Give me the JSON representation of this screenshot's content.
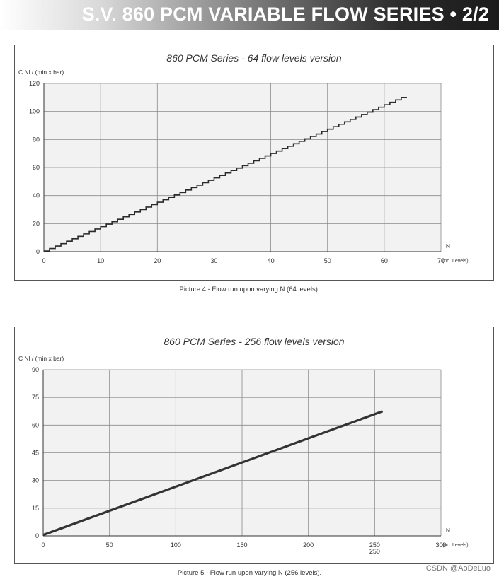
{
  "header": {
    "title": "S.V. 860 PCM VARIABLE FLOW SERIES • 2/2"
  },
  "chart_data": [
    {
      "type": "line",
      "title": "860 PCM  Series  -  64 flow levels version",
      "ylabel": "C Nl / (min x bar)",
      "xlabel": "N",
      "xlabel_unit": "(no. Levels)",
      "xlim": [
        0,
        70
      ],
      "ylim": [
        0,
        120
      ],
      "x_ticks": [
        0,
        10,
        20,
        30,
        40,
        50,
        60,
        70
      ],
      "y_ticks": [
        0,
        20,
        40,
        60,
        80,
        100,
        120
      ],
      "grid": true,
      "step": true,
      "series": [
        {
          "x": [
            0,
            63
          ],
          "y": [
            0.5,
            110
          ]
        }
      ],
      "caption": "Picture 4 - Flow run upon varying N (64 levels)."
    },
    {
      "type": "line",
      "title": "860 PCM Series -  256 flow levels version",
      "ylabel": "C Nl / (min x bar)",
      "xlabel": "N",
      "xlabel_unit": "(no. Levels)",
      "xlim": [
        0,
        300
      ],
      "ylim": [
        0,
        90
      ],
      "x_ticks": [
        0,
        50,
        100,
        150,
        200,
        250,
        300
      ],
      "y_ticks": [
        0,
        15,
        30,
        45,
        60,
        75,
        90
      ],
      "grid": true,
      "step": false,
      "extra_label": "250",
      "series": [
        {
          "x": [
            0,
            256
          ],
          "y": [
            0.5,
            67.5
          ]
        }
      ],
      "caption": "Picture 5 - Flow run upon varying N (256 levels)."
    }
  ],
  "watermark": "CSDN @AoDeLuo"
}
